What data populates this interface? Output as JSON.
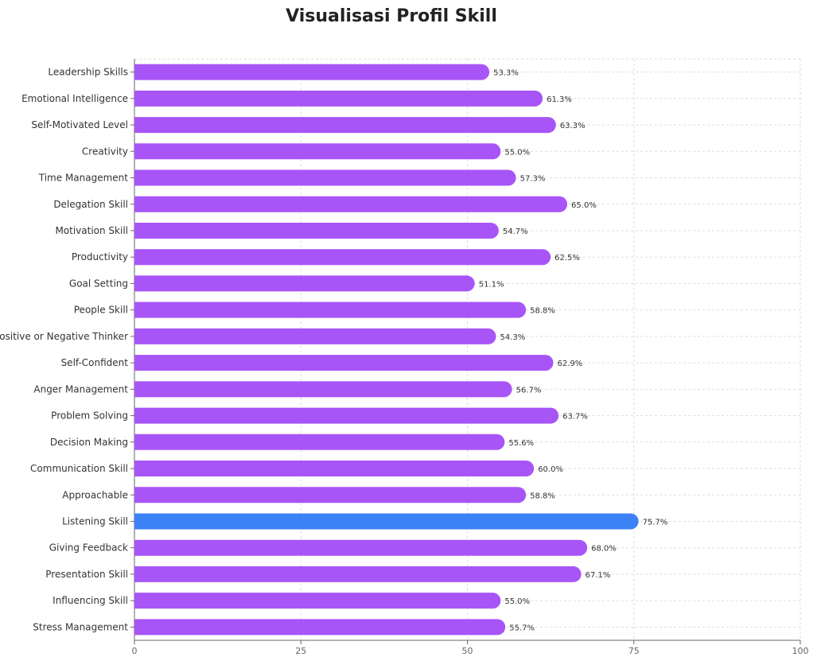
{
  "chart_data": {
    "type": "bar",
    "orientation": "horizontal",
    "title": "Visualisasi Profil Skill",
    "xlabel": "",
    "ylabel": "",
    "xlim": [
      0,
      100
    ],
    "xticks": [
      "0",
      "25",
      "50",
      "75",
      "100"
    ],
    "grid": true,
    "colors": {
      "default_bar": "#a855f7",
      "highlight_bar": "#3b82f6",
      "grid": "#dddddd",
      "axis": "#666666"
    },
    "categories": [
      "Leadership Skills",
      "Emotional Intelligence",
      "Self-Motivated Level",
      "Creativity",
      "Time Management",
      "Delegation Skill",
      "Motivation Skill",
      "Productivity",
      "Goal Setting",
      "People Skill",
      "Positive or Negative Thinker",
      "Self-Confident",
      "Anger Management",
      "Problem Solving",
      "Decision Making",
      "Communication Skill",
      "Approachable",
      "Listening Skill",
      "Giving Feedback",
      "Presentation Skill",
      "Influencing Skill",
      "Stress Management"
    ],
    "values": [
      53.3,
      61.3,
      63.3,
      55.0,
      57.3,
      65.0,
      54.7,
      62.5,
      51.1,
      58.8,
      54.3,
      62.9,
      56.7,
      63.7,
      55.6,
      60.0,
      58.8,
      75.7,
      68.0,
      67.1,
      55.0,
      55.7
    ],
    "data_labels": [
      "53.3%",
      "61.3%",
      "63.3%",
      "55.0%",
      "57.3%",
      "65.0%",
      "54.7%",
      "62.5%",
      "51.1%",
      "58.8%",
      "54.3%",
      "62.9%",
      "56.7%",
      "63.7%",
      "55.6%",
      "60.0%",
      "58.8%",
      "75.7%",
      "68.0%",
      "67.1%",
      "55.0%",
      "55.7%"
    ],
    "highlight_category": "Listening Skill"
  }
}
